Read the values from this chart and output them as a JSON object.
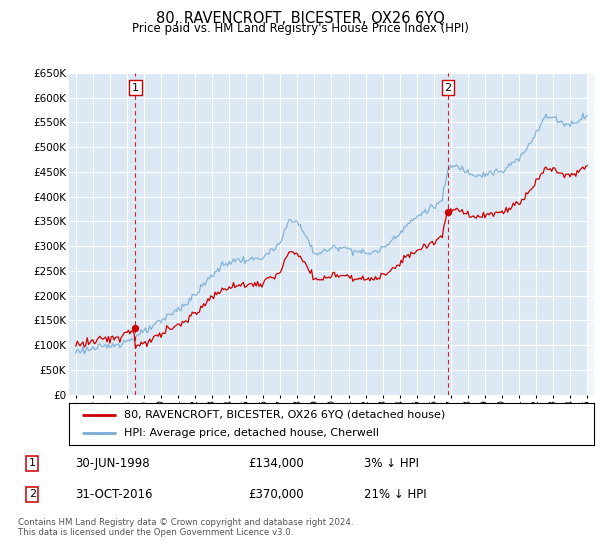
{
  "title": "80, RAVENCROFT, BICESTER, OX26 6YQ",
  "subtitle": "Price paid vs. HM Land Registry's House Price Index (HPI)",
  "hpi_color": "#7aadd4",
  "price_color": "#cc0000",
  "sale1_date": 1998.5,
  "sale1_price": 134000,
  "sale2_date": 2016.833,
  "sale2_price": 370000,
  "ylim": [
    0,
    650000
  ],
  "yticks": [
    0,
    50000,
    100000,
    150000,
    200000,
    250000,
    300000,
    350000,
    400000,
    450000,
    500000,
    550000,
    600000,
    650000
  ],
  "xlim_start": 1994.6,
  "xlim_end": 2025.4,
  "legend_label1": "80, RAVENCROFT, BICESTER, OX26 6YQ (detached house)",
  "legend_label2": "HPI: Average price, detached house, Cherwell",
  "annotation1_label": "1",
  "annotation1_text": "30-JUN-1998",
  "annotation1_price": "£134,000",
  "annotation1_hpi": "3% ↓ HPI",
  "annotation2_label": "2",
  "annotation2_text": "31-OCT-2016",
  "annotation2_price": "£370,000",
  "annotation2_hpi": "21% ↓ HPI",
  "footer": "Contains HM Land Registry data © Crown copyright and database right 2024.\nThis data is licensed under the Open Government Licence v3.0.",
  "bg_color": "#dce9f5"
}
